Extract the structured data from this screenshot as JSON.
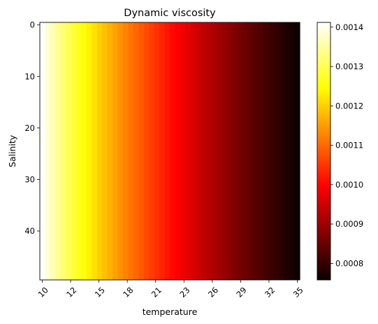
{
  "chart_data": {
    "type": "heatmap",
    "title": "Dynamic viscosity",
    "xlabel": "temperature",
    "ylabel": "Salinity",
    "x_ticks": [
      "10",
      "12",
      "15",
      "18",
      "21",
      "23",
      "26",
      "29",
      "32",
      "35"
    ],
    "y_ticks": [
      "0",
      "10",
      "20",
      "30",
      "40"
    ],
    "y_tick_values": [
      0,
      10,
      20,
      30,
      40
    ],
    "x_range": [
      10,
      35
    ],
    "salinity_range": [
      0,
      49
    ],
    "n_columns": 50,
    "colormap": "hot",
    "viscosity_at_temperature_10": 0.00141,
    "viscosity_at_temperature_35": 0.00076,
    "colorbar": {
      "ticks": [
        "0.0008",
        "0.0009",
        "0.0010",
        "0.0011",
        "0.0012",
        "0.0013",
        "0.0014"
      ],
      "tick_values": [
        0.0008,
        0.0009,
        0.001,
        0.0011,
        0.0012,
        0.0013,
        0.0014
      ],
      "range": [
        0.000758,
        0.001412
      ]
    }
  }
}
